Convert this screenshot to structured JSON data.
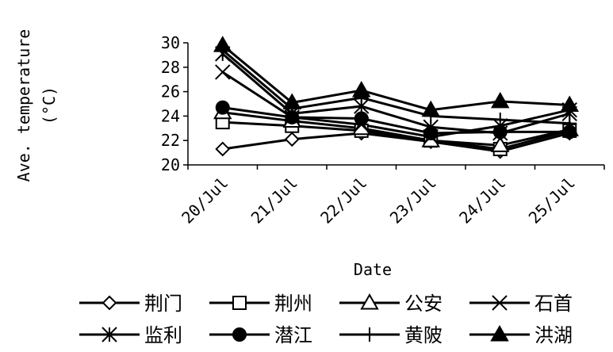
{
  "chart_data": {
    "type": "line",
    "title": "",
    "xlabel": "Date",
    "ylabel_line1": "Ave. temperature",
    "ylabel_line2": "(°C)",
    "categories": [
      "20/Jul",
      "21/Jul",
      "22/Jul",
      "23/Jul",
      "24/Jul",
      "25/Jul"
    ],
    "ylim": [
      20,
      30
    ],
    "yticks": [
      "30",
      "28",
      "26",
      "24",
      "22",
      "20"
    ],
    "grid": false,
    "legend_position": "bottom",
    "series": [
      {
        "name": "荆门",
        "marker": "diamond-open",
        "values": [
          21.3,
          22.1,
          22.6,
          21.9,
          21.1,
          22.6
        ]
      },
      {
        "name": "荆州",
        "marker": "square-open",
        "values": [
          23.5,
          23.2,
          22.8,
          22.0,
          21.3,
          22.8
        ]
      },
      {
        "name": "公安",
        "marker": "triangle-open",
        "values": [
          24.3,
          23.6,
          23.0,
          22.0,
          21.6,
          22.9
        ]
      },
      {
        "name": "石首",
        "marker": "x",
        "values": [
          27.6,
          23.9,
          23.3,
          22.3,
          23.2,
          24.5
        ]
      },
      {
        "name": "监利",
        "marker": "star",
        "values": [
          29.1,
          24.2,
          24.8,
          23.1,
          22.6,
          24.2
        ]
      },
      {
        "name": "潜江",
        "marker": "circle-filled",
        "values": [
          24.7,
          23.9,
          23.8,
          22.6,
          22.7,
          22.7
        ]
      },
      {
        "name": "黄陂",
        "marker": "plus",
        "values": [
          29.4,
          24.6,
          25.5,
          24.0,
          23.7,
          23.4
        ]
      },
      {
        "name": "洪湖",
        "marker": "triangle-filled",
        "values": [
          29.8,
          25.1,
          26.1,
          24.5,
          25.2,
          24.9
        ]
      }
    ]
  }
}
